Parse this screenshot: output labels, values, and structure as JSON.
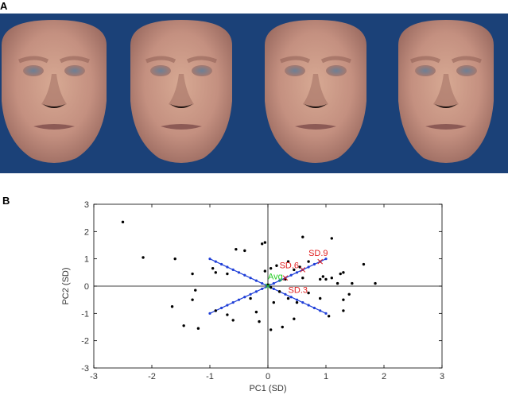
{
  "panel_a": {
    "label": "A",
    "background_color": "#1b4178",
    "faces": [
      {
        "kind": "average-face"
      },
      {
        "kind": "morph-face"
      },
      {
        "kind": "morph-face"
      },
      {
        "kind": "morph-face"
      }
    ]
  },
  "panel_b": {
    "label": "B"
  },
  "chart_data": {
    "type": "scatter",
    "xlabel": "PC1 (SD)",
    "ylabel": "PC2 (SD)",
    "xlim": [
      -3,
      3
    ],
    "ylim": [
      -3,
      3
    ],
    "xticks": [
      -3,
      -2,
      -1,
      0,
      1,
      2,
      3
    ],
    "yticks": [
      -3,
      -2,
      -1,
      0,
      1,
      2,
      3
    ],
    "grid": false,
    "series": [
      {
        "kind": "points",
        "color": "#000000",
        "points": [
          [
            -2.5,
            2.35
          ],
          [
            -2.15,
            1.05
          ],
          [
            -1.6,
            1.0
          ],
          [
            -1.3,
            0.45
          ],
          [
            -1.25,
            -0.15
          ],
          [
            -1.3,
            -0.5
          ],
          [
            -1.65,
            -0.75
          ],
          [
            -1.45,
            -1.45
          ],
          [
            -1.2,
            -1.55
          ],
          [
            -0.9,
            -0.9
          ],
          [
            -0.95,
            0.65
          ],
          [
            -0.9,
            0.5
          ],
          [
            -0.7,
            0.45
          ],
          [
            -0.7,
            -1.05
          ],
          [
            -0.6,
            -1.25
          ],
          [
            -0.55,
            1.35
          ],
          [
            -0.4,
            1.3
          ],
          [
            -0.3,
            -0.45
          ],
          [
            -0.2,
            -0.95
          ],
          [
            -0.15,
            -1.3
          ],
          [
            -0.1,
            1.55
          ],
          [
            -0.05,
            1.6
          ],
          [
            -0.05,
            0.55
          ],
          [
            0.0,
            0.05
          ],
          [
            0.05,
            -0.05
          ],
          [
            0.1,
            -0.6
          ],
          [
            0.15,
            0.75
          ],
          [
            0.05,
            -1.6
          ],
          [
            0.25,
            -1.5
          ],
          [
            0.3,
            0.25
          ],
          [
            0.35,
            0.9
          ],
          [
            0.45,
            0.6
          ],
          [
            0.55,
            0.7
          ],
          [
            0.6,
            0.3
          ],
          [
            0.35,
            -0.45
          ],
          [
            0.5,
            -0.6
          ],
          [
            0.45,
            -1.2
          ],
          [
            0.6,
            1.8
          ],
          [
            0.7,
            0.9
          ],
          [
            0.7,
            -0.25
          ],
          [
            0.9,
            0.25
          ],
          [
            0.9,
            -0.45
          ],
          [
            0.95,
            0.35
          ],
          [
            1.0,
            0.25
          ],
          [
            1.05,
            -1.1
          ],
          [
            1.1,
            0.3
          ],
          [
            1.1,
            1.75
          ],
          [
            1.2,
            0.1
          ],
          [
            1.25,
            0.45
          ],
          [
            1.3,
            0.5
          ],
          [
            1.3,
            -0.5
          ],
          [
            1.3,
            -0.9
          ],
          [
            1.4,
            -0.3
          ],
          [
            1.45,
            0.1
          ],
          [
            1.65,
            0.8
          ],
          [
            1.85,
            0.1
          ],
          [
            0.2,
            -0.2
          ],
          [
            0.05,
            0.65
          ]
        ]
      },
      {
        "kind": "line",
        "color": "#1f3fd8",
        "points": [
          [
            -1,
            1
          ],
          [
            1,
            -1
          ]
        ]
      },
      {
        "kind": "line",
        "color": "#1f3fd8",
        "points": [
          [
            -1,
            -1
          ],
          [
            1,
            1
          ]
        ]
      }
    ],
    "annotations": [
      {
        "text": "Avg",
        "x": 0.0,
        "y": 0.25,
        "color": "#22cc22"
      },
      {
        "text": "SD.3",
        "x": 0.35,
        "y": -0.25,
        "color": "#e02020"
      },
      {
        "text": "SD.6",
        "x": 0.2,
        "y": 0.65,
        "color": "#e02020"
      },
      {
        "text": "SD.9",
        "x": 0.7,
        "y": 1.1,
        "color": "#e02020"
      }
    ],
    "markers": [
      {
        "shape": "x",
        "x": 0.0,
        "y": 0.0,
        "color": "#22cc22"
      },
      {
        "shape": "x",
        "x": 0.3,
        "y": 0.3,
        "color": "#e02020"
      },
      {
        "shape": "x",
        "x": 0.6,
        "y": 0.6,
        "color": "#e02020"
      },
      {
        "shape": "x",
        "x": 0.9,
        "y": 0.9,
        "color": "#e02020"
      }
    ]
  }
}
